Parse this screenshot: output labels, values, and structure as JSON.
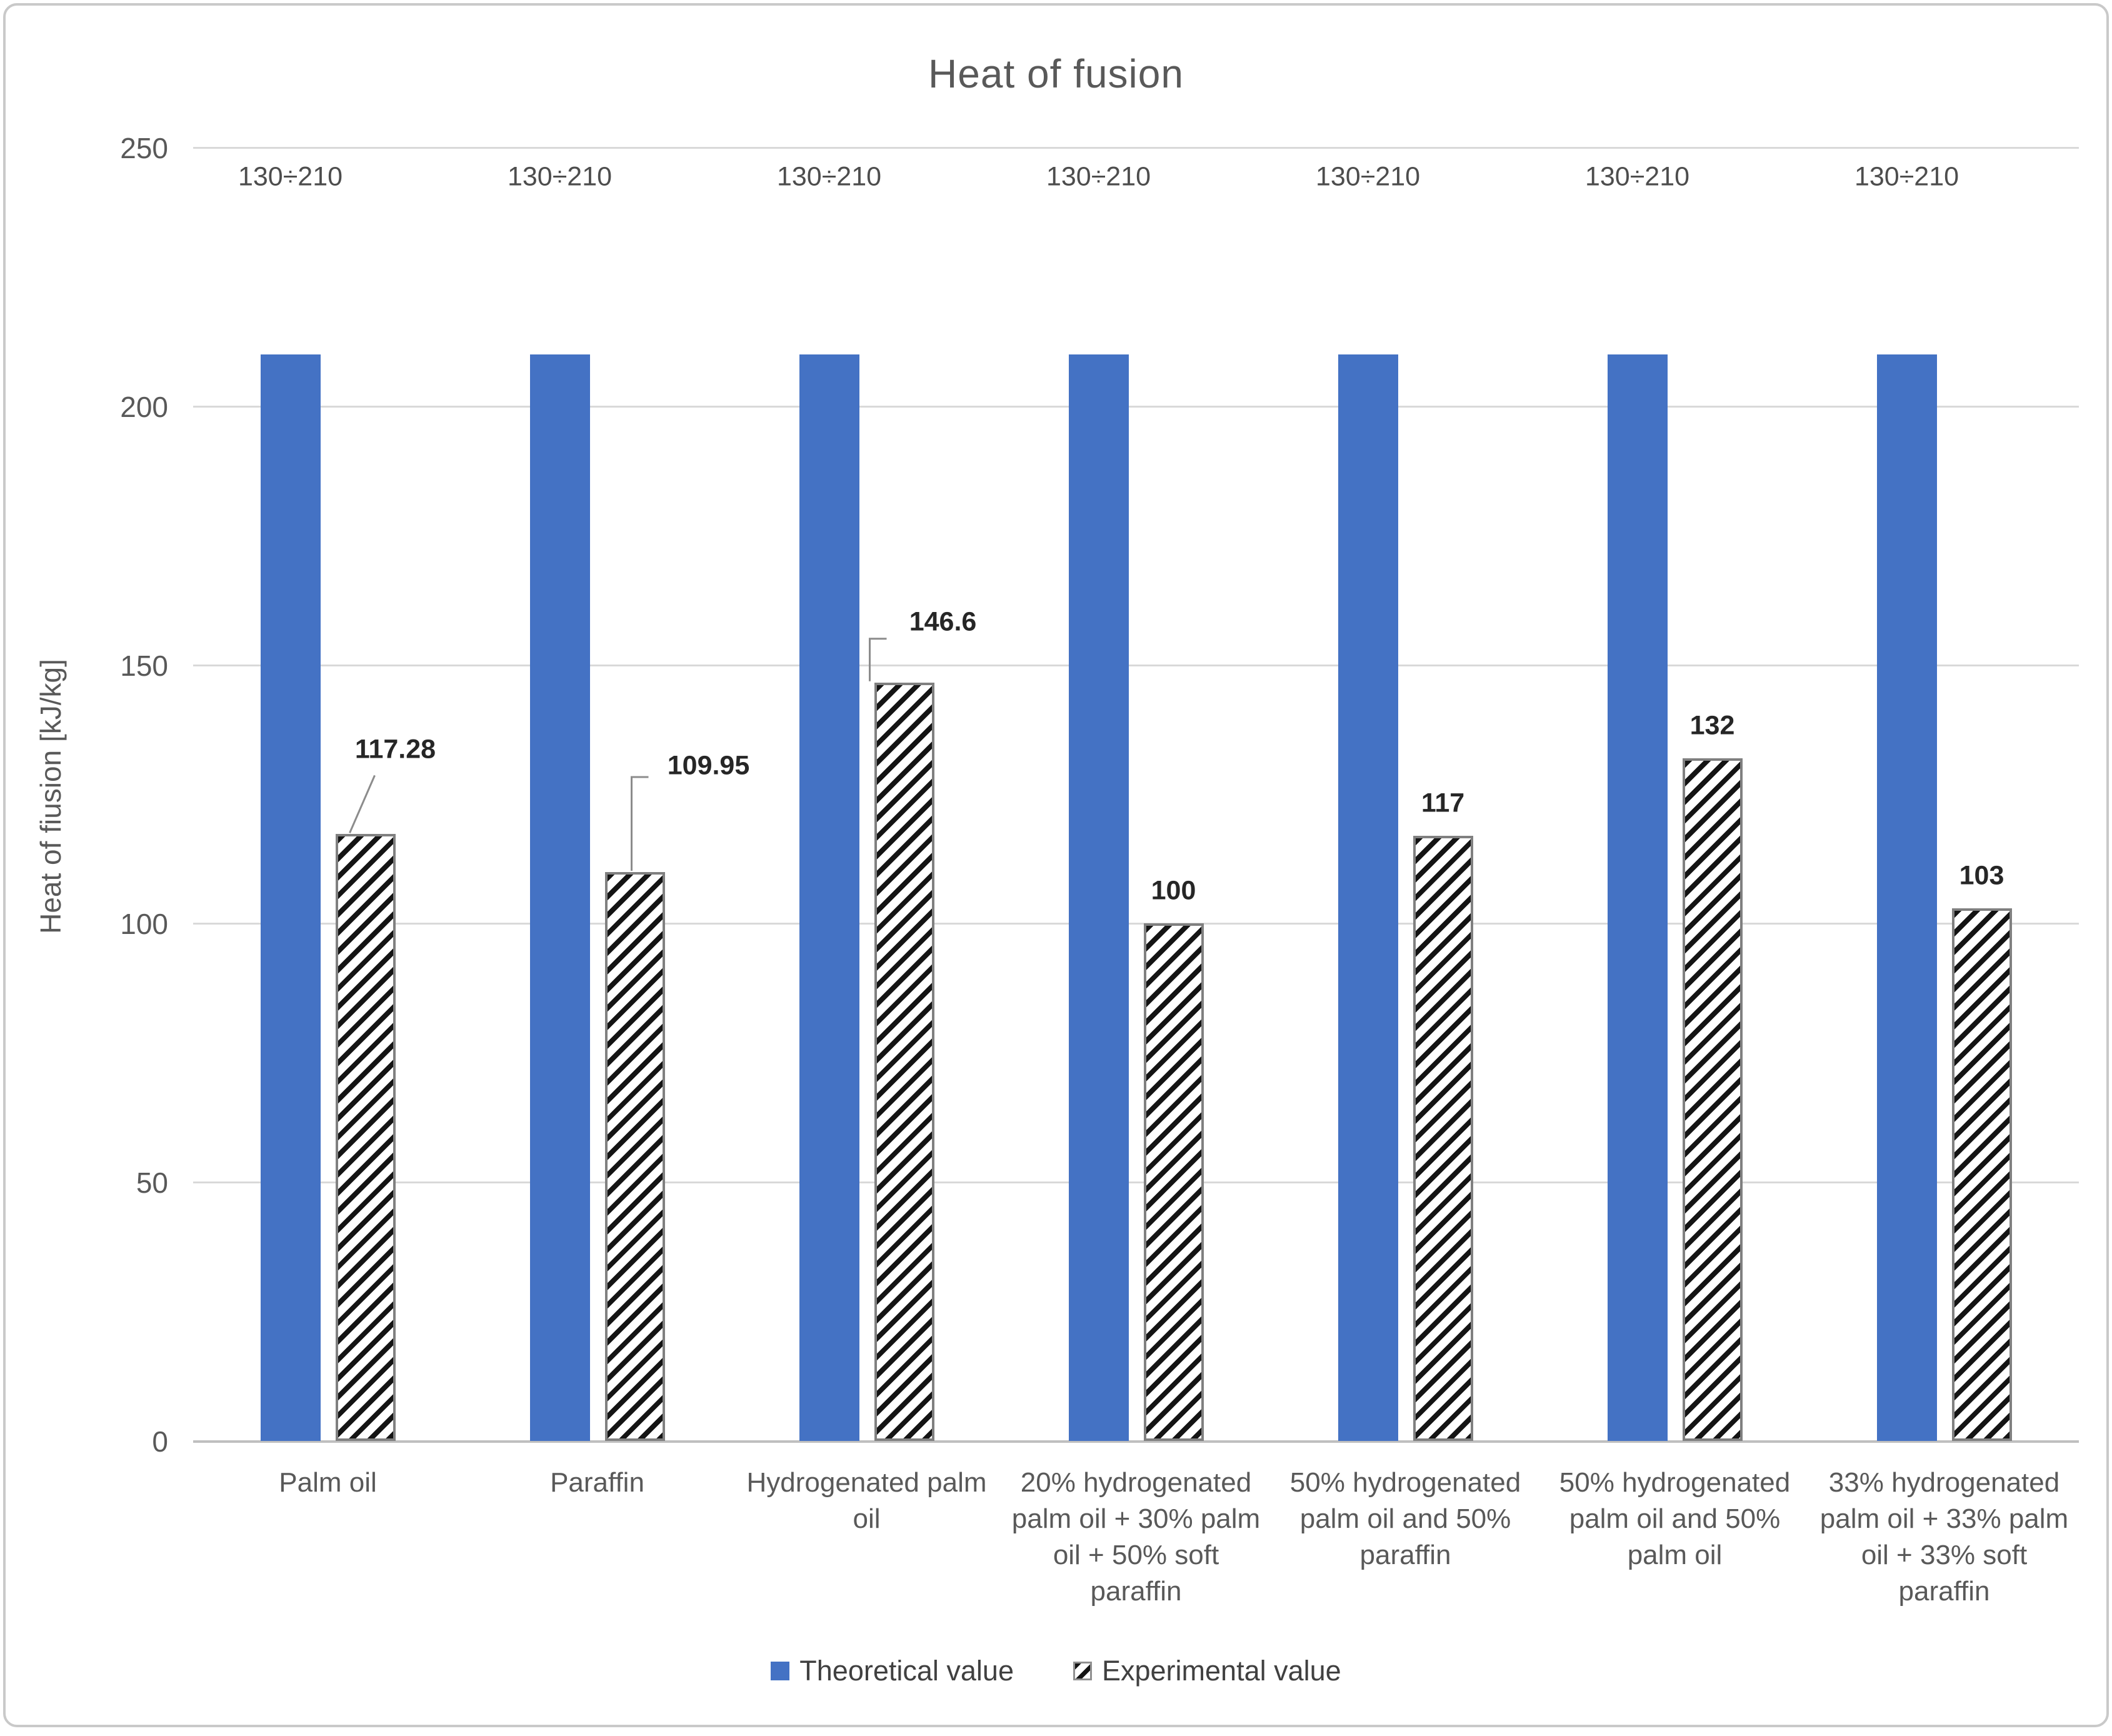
{
  "chart_data": {
    "type": "bar",
    "title": "Heat of fusion",
    "ylabel": "Heat of fiusion [kJ/kg]",
    "ylim": [
      0,
      250
    ],
    "yticks": [
      0,
      50,
      100,
      150,
      200,
      250
    ],
    "grid": true,
    "legend_position": "bottom",
    "categories": [
      "Palm oil",
      "Paraffin",
      "Hydrogenated palm oil",
      "20% hydrogenated palm oil + 30% palm oil + 50% soft paraffin",
      "50% hydrogenated palm oil and 50% paraffin",
      "50% hydrogenated palm oil and 50% palm oil",
      "33% hydrogenated palm oil + 33% palm oil + 33% soft paraffin"
    ],
    "series": [
      {
        "name": "Theoretical value",
        "style": "solid",
        "color": "#4472C4",
        "values": [
          210,
          210,
          210,
          210,
          210,
          210,
          210
        ],
        "data_labels": [
          "130÷210",
          "130÷210",
          "130÷210",
          "130÷210",
          "130÷210",
          "130÷210",
          "130÷210"
        ]
      },
      {
        "name": "Experimental value",
        "style": "hatch",
        "values": [
          117.28,
          109.95,
          146.6,
          100,
          117,
          132,
          103
        ],
        "data_labels": [
          "117.28",
          "109.95",
          "146.6",
          "100",
          "117",
          "132",
          "103"
        ],
        "callouts": [
          true,
          true,
          true,
          false,
          false,
          false,
          false
        ]
      }
    ]
  },
  "colors": {
    "bar_blue": "#4472C4",
    "gridline": "#D9D9D9",
    "axis": "#BFBFBF",
    "text_gray": "#595959",
    "data_label_dark": "#262626",
    "hatch_outline": "#808080",
    "leader_line": "#8C8C8C"
  }
}
